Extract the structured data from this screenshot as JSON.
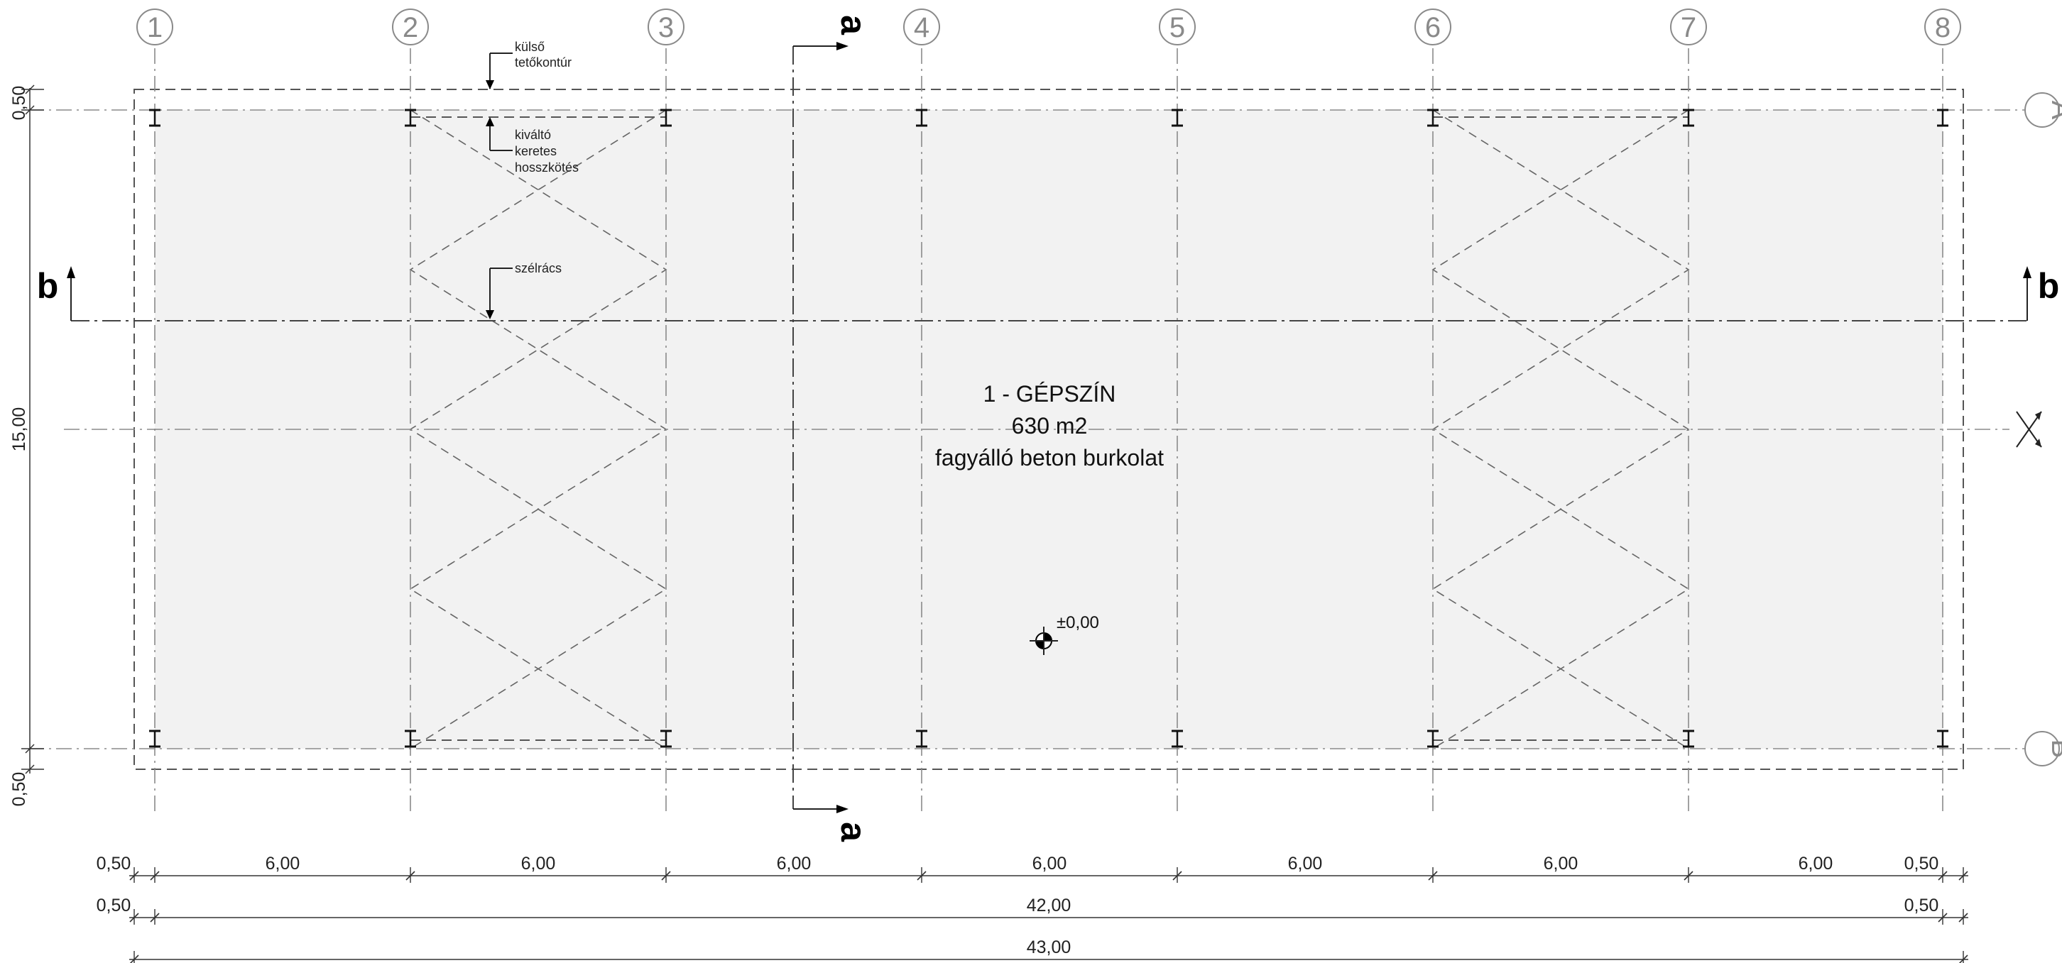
{
  "grid": {
    "columns": [
      "1",
      "2",
      "3",
      "4",
      "5",
      "6",
      "7",
      "8"
    ],
    "rows": [
      "A",
      "B"
    ]
  },
  "labels": {
    "outer_roof": [
      "külső",
      "tetőkontúr"
    ],
    "frame_bracing": [
      "kiváltó",
      "keretes",
      "hosszkötés"
    ],
    "wind_bracing": "szélrács"
  },
  "room": {
    "name": "1 - GÉPSZÍN",
    "area": "630 m2",
    "finish": "fagyálló beton burkolat"
  },
  "level_mark": "±0,00",
  "sections": {
    "vertical": "a",
    "horizontal": "b"
  },
  "dimensions": {
    "left": [
      "0,50",
      "15,00",
      "0,50"
    ],
    "row1": [
      "0,50",
      "6,00",
      "6,00",
      "6,00",
      "6,00",
      "6,00",
      "6,00",
      "6,00",
      "0,50"
    ],
    "row2": [
      "0,50",
      "42,00",
      "0,50"
    ],
    "row3": "43,00"
  },
  "colors": {
    "floor": "#f2f2f2",
    "grid": "#8a8a8a",
    "lines": "#333333"
  },
  "icons": [
    "steel-column-icon",
    "section-arrow-icon",
    "level-marker-icon",
    "north-arrow-icon",
    "dimension-tick-icon"
  ]
}
